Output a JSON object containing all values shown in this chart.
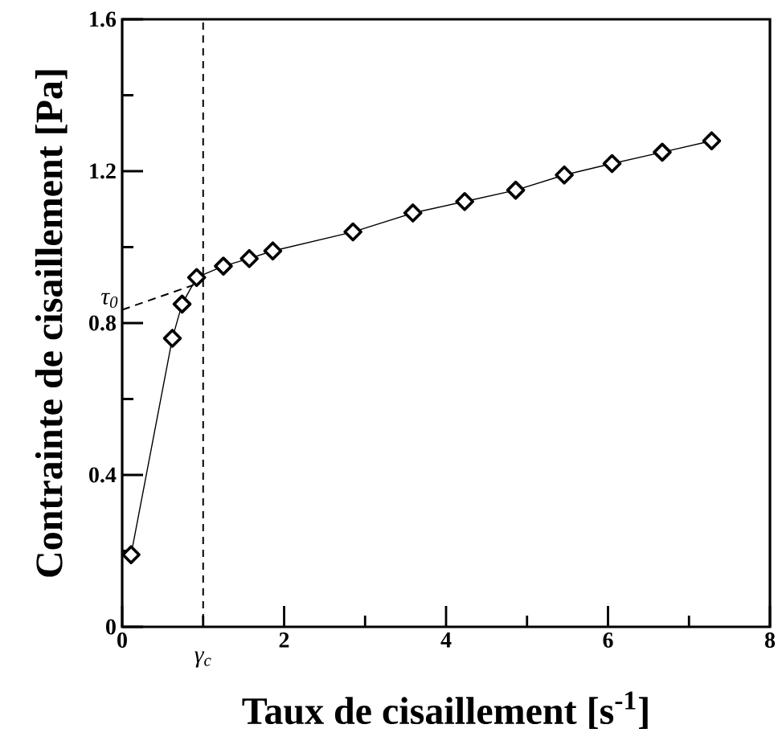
{
  "chart_data": {
    "type": "line",
    "xlabel": "Taux de cisaillement [s$^{-1}$]",
    "ylabel": "Contrainte de cisaillement [Pa]",
    "xlim": [
      0,
      8
    ],
    "ylim": [
      0,
      1.6
    ],
    "xticks": [
      0,
      {
        "value": 1,
        "label": null
      },
      2,
      {
        "value": 3,
        "label": null
      },
      4,
      {
        "value": 5,
        "label": null
      },
      6,
      {
        "value": 7,
        "label": null
      },
      8
    ],
    "yticks": [
      0,
      {
        "value": 0.2,
        "label": null
      },
      0.4,
      {
        "value": 0.6,
        "label": null
      },
      0.8,
      {
        "value": 1.0,
        "label": null
      },
      1.2,
      {
        "value": 1.4,
        "label": null
      },
      1.6
    ],
    "series": [
      {
        "color": "#000000",
        "marker": "diamond",
        "line_style": "solid",
        "x": [
          0.11,
          0.62,
          0.74,
          0.92,
          1.25,
          1.57,
          1.86,
          2.85,
          3.59,
          4.23,
          4.86,
          5.46,
          6.05,
          6.67,
          7.28
        ],
        "values": [
          0.19,
          0.76,
          0.85,
          0.92,
          0.95,
          0.97,
          0.99,
          1.04,
          1.09,
          1.12,
          1.15,
          1.19,
          1.22,
          1.25,
          1.28
        ]
      },
      {
        "color": "#000000",
        "marker": "none",
        "line_style": "dashed",
        "x": [
          0,
          0.88
        ],
        "values": [
          0.835,
          0.9
        ]
      }
    ],
    "ref_lines": [
      {
        "axis": "x",
        "value": 1,
        "label": "γ$_{c}$",
        "color": "#000000",
        "line_style": "dashed"
      }
    ],
    "annotations": [
      {
        "text": "τ$_{0}$",
        "x": 0,
        "y": 0.835
      }
    ]
  }
}
